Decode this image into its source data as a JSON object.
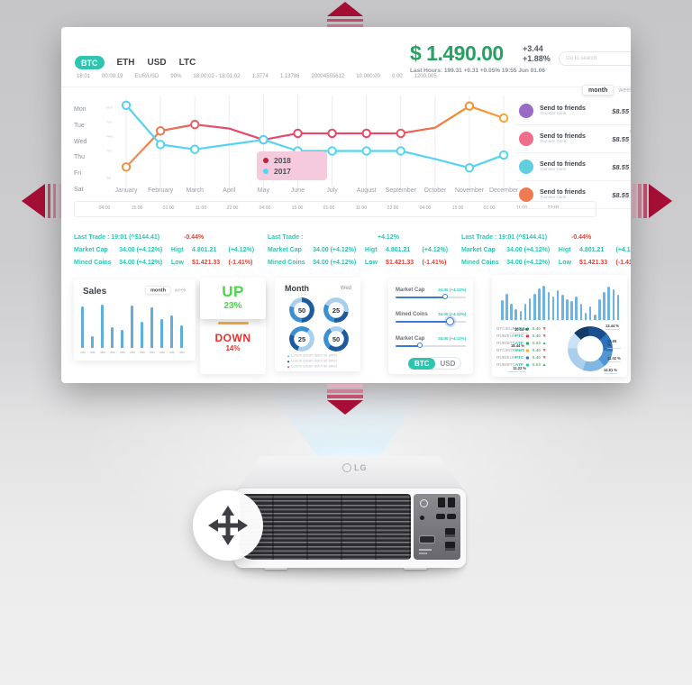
{
  "screen": {
    "tabs": [
      {
        "label": "BTC",
        "active": true
      },
      {
        "label": "ETH",
        "active": false
      },
      {
        "label": "USD",
        "active": false
      },
      {
        "label": "LTC",
        "active": false
      }
    ],
    "ticker": [
      "18:01",
      "00:00:19",
      "EUR/USD",
      "90%",
      "18:00:02 - 18:01:02",
      "1.3774",
      "1.13786",
      "20004555612",
      "10 000:00",
      "0.00",
      "1200.005"
    ],
    "price": {
      "value": "$ 1.490.00",
      "change": "+3.44",
      "change_pct": "+1.88%",
      "sub": "Last Hours: 199.31 +0.31  +0.05%  19:55 Jun 01.06"
    },
    "search_placeholder": "Go to search",
    "period_toggle": {
      "active": "month",
      "inactive": "week"
    },
    "chart_data": {
      "type": "line",
      "categories": [
        "January",
        "February",
        "March",
        "April",
        "May",
        "June",
        "July",
        "August",
        "September",
        "October",
        "November",
        "December"
      ],
      "y_labels": [
        "Mon",
        "Tue",
        "Wed",
        "Thu",
        "Fri",
        "Sat"
      ],
      "y_labels_mini": [
        "Mon",
        "Tue",
        "Wed",
        "Thu",
        "Sat"
      ],
      "time_labels": [
        "04:00",
        "15:00",
        "01:00",
        "11:00",
        "22:00",
        "04:00",
        "15:00",
        "01:00",
        "11:00",
        "22:00",
        "04:00",
        "15:00",
        "01:00",
        "11:00",
        "22:00"
      ],
      "legend_bg": "#F6CADD",
      "series": [
        {
          "name": "2018",
          "color": "#E8476B",
          "gradient": [
            "#F5A83B",
            "#E8476B",
            "#F5872F",
            "#F5A83B"
          ],
          "dot_color": "#C21F3A",
          "values": [
            2.5,
            4.75,
            5.15,
            4.9,
            4.2,
            4.6,
            4.6,
            4.6,
            4.6,
            4.95,
            6.3,
            5.55
          ],
          "markers": [
            1,
            1,
            1,
            0,
            1,
            1,
            1,
            1,
            1,
            0,
            1,
            1
          ]
        },
        {
          "name": "2017",
          "color": "#55D3EF",
          "dot_color": "#4AD9F2",
          "values": [
            6.35,
            3.9,
            3.6,
            3.9,
            4.2,
            3.5,
            3.5,
            3.5,
            3.5,
            3.0,
            2.45,
            3.25
          ],
          "markers": [
            1,
            1,
            1,
            0,
            1,
            1,
            1,
            1,
            1,
            0,
            1,
            1
          ]
        }
      ]
    },
    "friends": {
      "toggle": {
        "active": "month",
        "inactive": "week"
      },
      "items": [
        {
          "title": "Send to friends",
          "subtitle": "Transfer bank",
          "price": "$8.55",
          "color": "#9A6BC4",
          "badge_color": ""
        },
        {
          "title": "Send to friends",
          "subtitle": "Transfer bank",
          "price": "$8.55",
          "color": "#EE6E8B",
          "badge_color": "#F5D547"
        },
        {
          "title": "Send to friends",
          "subtitle": "Transfer bank",
          "price": "$8.55",
          "color": "#62CFE0",
          "badge_color": ""
        },
        {
          "title": "Send to friends",
          "subtitle": "Transfer bank",
          "price": "$8.55",
          "color": "#EF7B52",
          "badge_color": ""
        }
      ]
    },
    "stats": [
      {
        "trade_label": "Last Trade : 19:01 (^$144.41)",
        "trade_value": "-0.44%",
        "trade_negative": true,
        "rows": [
          {
            "label": "Market Cap",
            "value": "34.00 (+4.12%)",
            "label2": "Higt",
            "value2": "4.801.21",
            "pct2": "(+4.12%)",
            "neg": false
          },
          {
            "label": "Mined Coins",
            "value": "34.00 (+4.12%)",
            "label2": "Low",
            "value2": "$1.421.33",
            "pct2": "(-1.41%)",
            "neg": true
          }
        ]
      },
      {
        "trade_label": "Last Trade :",
        "trade_value": "+4.12%",
        "trade_negative": false,
        "rows": [
          {
            "label": "Market Cap",
            "value": "34.00 (+4.12%)",
            "label2": "Higt",
            "value2": "4.801.21",
            "pct2": "(+4.12%)",
            "neg": false
          },
          {
            "label": "Mined Coins",
            "value": "34.00 (+4.12%)",
            "label2": "Low",
            "value2": "$1.421.33",
            "pct2": "(-1.41%)",
            "neg": true
          }
        ]
      },
      {
        "trade_label": "Last Trade : 19:01 (^$144.41)",
        "trade_value": "-0.44%",
        "trade_negative": true,
        "rows": [
          {
            "label": "Market Cap",
            "value": "34.00 (+4.12%)",
            "label2": "Higt",
            "value2": "4.801.21",
            "pct2": "(+4.12%)",
            "neg": false
          },
          {
            "label": "Mined Coins",
            "value": "34.00 (+4.12%)",
            "label2": "Low",
            "value2": "$1.421.33",
            "pct2": "(-1.41%)",
            "neg": true
          }
        ]
      }
    ],
    "cards": {
      "sales": {
        "title": "Sales",
        "toggle": {
          "active": "month",
          "inactive": "week"
        },
        "chart_data": {
          "type": "bar",
          "values": [
            88,
            25,
            92,
            45,
            38,
            90,
            55,
            86,
            62,
            70,
            48
          ],
          "color": "#5FAEDC"
        }
      },
      "updown": {
        "up_label": "UP",
        "up_value": "23%",
        "down_label": "DOWN",
        "down_value": "14%",
        "up_color": "#4CD64C",
        "down_color": "#E8312F",
        "divider_color": "#E8A33D"
      },
      "month": {
        "title": "Month",
        "subtitle": "Wed",
        "chart_data": {
          "type": "pie",
          "donuts": [
            50,
            25,
            25,
            50
          ],
          "palette": [
            "#1D5A9E",
            "#3C8FD0",
            "#A8D0EE"
          ]
        },
        "legend": [
          {
            "text": "Lorem ipsum dolor sit amet",
            "color": "#55D3EF"
          },
          {
            "text": "Lorem ipsum dolor sit amet",
            "color": "#1B4F8A"
          },
          {
            "text": "Lorem ipsum dolor sit amet",
            "color": "#E84A9B"
          }
        ]
      },
      "sliders": {
        "rows": [
          {
            "label": "Market Cap",
            "value": "34.00 (+4.12%)",
            "pct": 70,
            "highlight": false
          },
          {
            "label": "Mined Coins",
            "value": "34.00 (+4.12%)",
            "pct": 75,
            "highlight": true
          },
          {
            "label": "Market Cap",
            "value": "34.00 (+4.12%)",
            "pct": 35,
            "highlight": false
          }
        ],
        "toggle": {
          "active": "BTC",
          "inactive": "USD"
        }
      },
      "market": {
        "chart_data": {
          "type": "bar",
          "values": [
            55,
            72,
            45,
            30,
            25,
            45,
            60,
            72,
            88,
            95,
            78,
            65,
            82,
            70,
            58,
            52,
            65,
            45,
            20,
            38,
            15,
            58,
            78,
            92,
            86,
            70
          ],
          "color": "#6FB4E0"
        },
        "table": [
          {
            "pair": "BTC/EUR",
            "code": "MBS",
            "dot": "#27AE60",
            "value": "0.40",
            "trend": "down"
          },
          {
            "pair": "RUB/EUR",
            "code": "PTC",
            "dot": "#E03A3E",
            "value": "0.40",
            "trend": "down"
          },
          {
            "pair": "RUB/BTC",
            "code": "ATF",
            "dot": "#27AE60",
            "value": "0.03",
            "trend": "up"
          },
          {
            "pair": "BTC/EUR",
            "code": "MBS",
            "dot": "#F5A83B",
            "value": "0.40",
            "trend": "down"
          },
          {
            "pair": "RUB/EUR",
            "code": "PTC",
            "dot": "#3B7BD4",
            "value": "0.40",
            "trend": "down"
          },
          {
            "pair": "RUB/BTC",
            "code": "ATF",
            "dot": "#2EC5B0",
            "value": "0.03",
            "trend": "up"
          }
        ],
        "donut_chart": {
          "type": "pie",
          "segments": [
            {
              "label": "10.14 %",
              "value": 10.14,
              "color": "#123C68",
              "side": "left"
            },
            {
              "label": "13.44 %",
              "value": 13.44,
              "color": "#1A4E8C",
              "side": "right"
            },
            {
              "label": "12.65 %",
              "value": 12.65,
              "color": "#2E74BC",
              "side": "right"
            },
            {
              "label": "11.02 %",
              "value": 11.02,
              "color": "#4F97D4",
              "side": "right"
            },
            {
              "label": "14.81 %",
              "value": 14.81,
              "color": "#7FB6E2",
              "side": "right"
            },
            {
              "label": "18.44 %",
              "value": 18.44,
              "color": "#A9CFEC",
              "side": "left"
            },
            {
              "label": "11.22 %",
              "value": 11.22,
              "color": "#C9E2F5",
              "side": "left"
            }
          ]
        }
      }
    }
  },
  "projector": {
    "brand": "LG"
  }
}
